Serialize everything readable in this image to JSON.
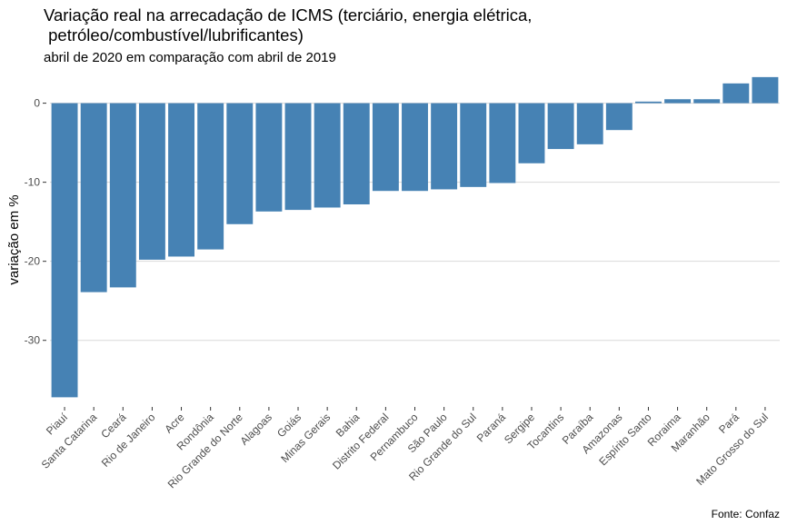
{
  "chart_data": {
    "type": "bar",
    "title_line1": "Variação real na arrecadação de ICMS (terciário, energia elétrica,",
    "title_line2": " petróleo/combustível/lubrificantes)",
    "subtitle": "abril de 2020 em comparação com abril de 2019",
    "xlabel": "",
    "ylabel": "variação em %",
    "caption": "Fonte: Confaz",
    "ylim": [
      -37.5,
      3.4
    ],
    "yticks": [
      0,
      -10,
      -20,
      -30
    ],
    "grid": true,
    "bar_color": "#4682B4",
    "categories": [
      "Piauí",
      "Santa Catarina",
      "Ceará",
      "Rio de Janeiro",
      "Acre",
      "Rondônia",
      "Rio Grande do Norte",
      "Alagoas",
      "Goiás",
      "Minas Gerais",
      "Bahia",
      "Distrito Federal",
      "Pernambuco",
      "São Paulo",
      "Rio Grande do Sul",
      "Paraná",
      "Sergipe",
      "Tocantins",
      "Paraíba",
      "Amazonas",
      "Espírito Santo",
      "Roraima",
      "Maranhão",
      "Pará",
      "Mato Grosso do Sul"
    ],
    "values": [
      -37.2,
      -23.9,
      -23.3,
      -19.8,
      -19.4,
      -18.5,
      -15.3,
      -13.7,
      -13.5,
      -13.2,
      -12.8,
      -11.1,
      -11.1,
      -10.9,
      -10.6,
      -10.1,
      -7.6,
      -5.8,
      -5.2,
      -3.4,
      0.2,
      0.5,
      0.5,
      2.5,
      3.3
    ]
  }
}
